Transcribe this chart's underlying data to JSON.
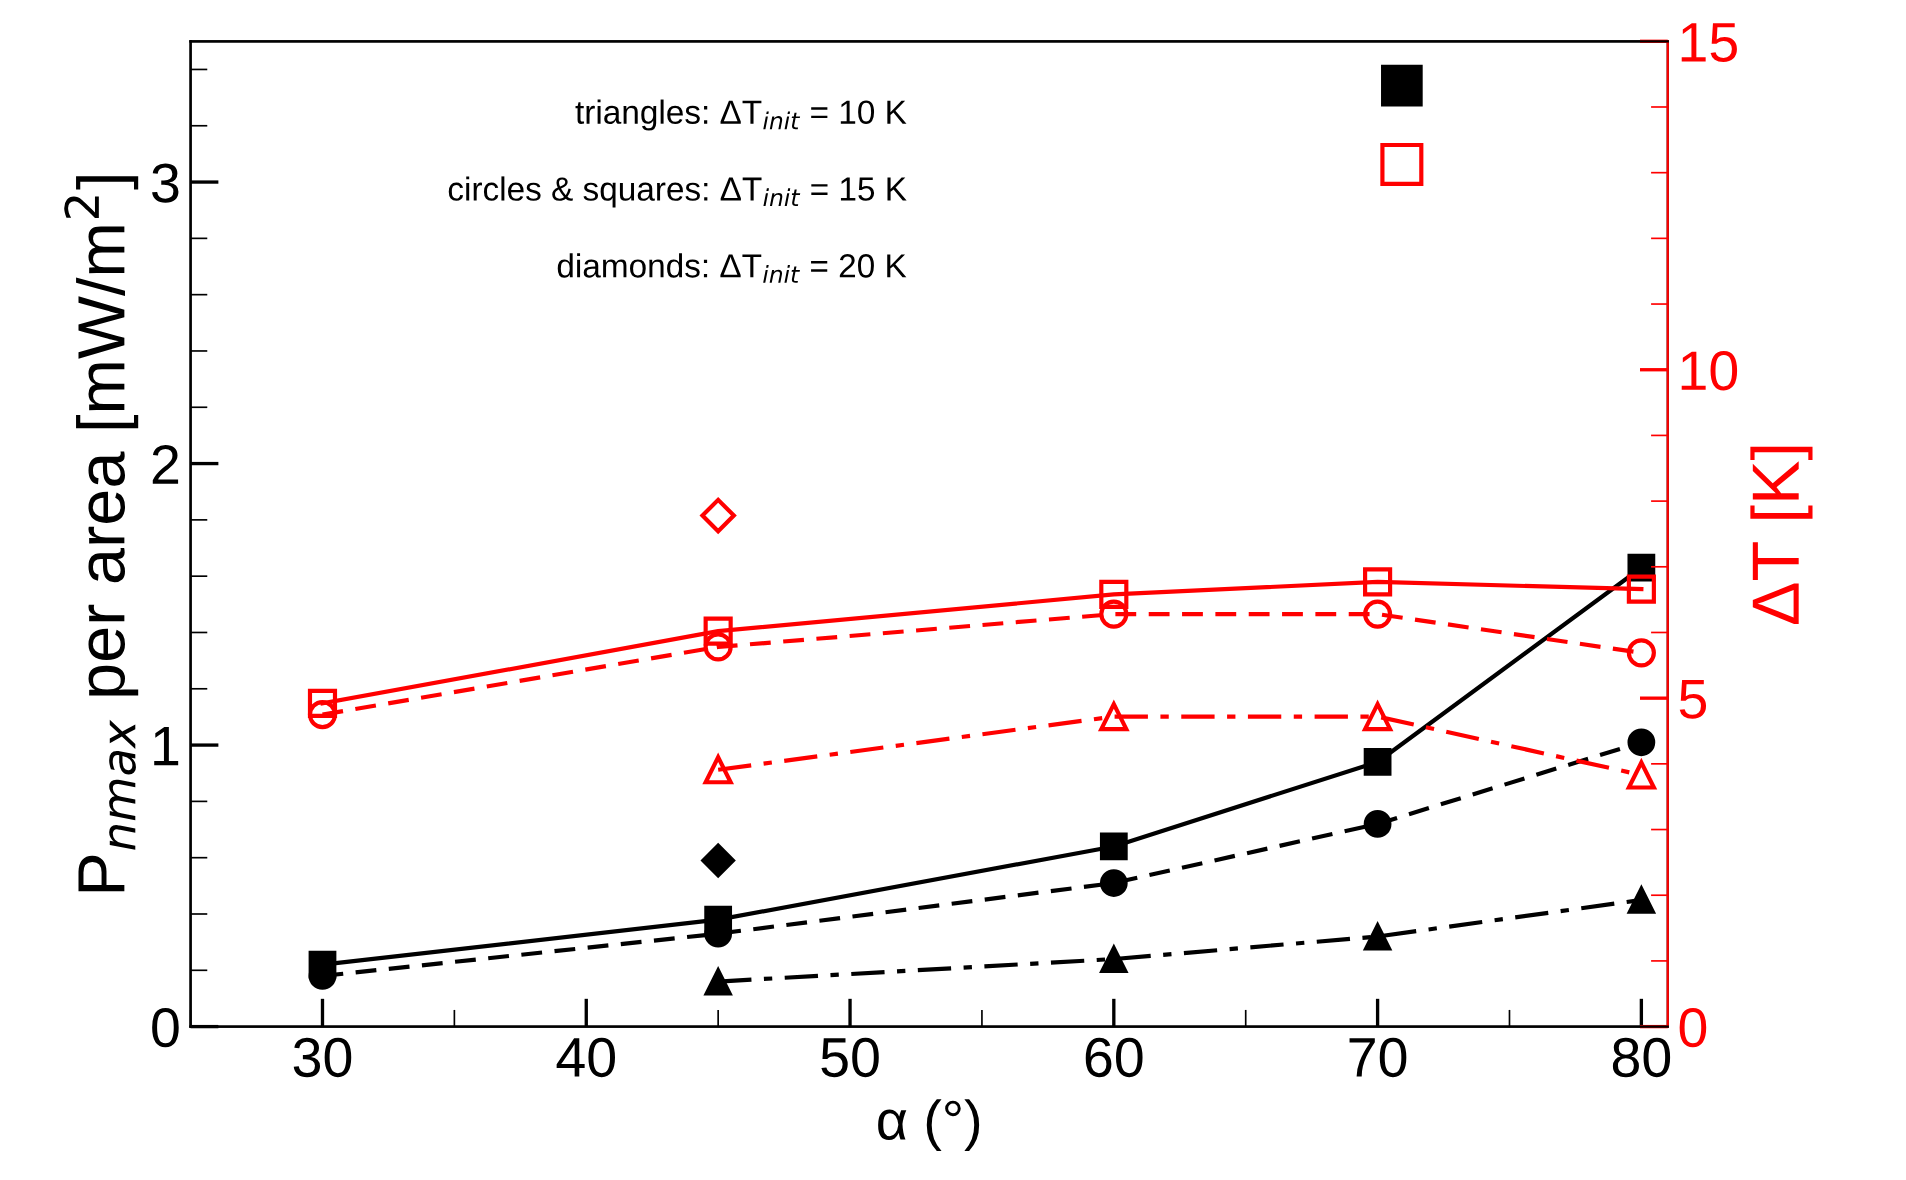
{
  "chart_data": {
    "type": "line",
    "xlabel": "α (°)",
    "ylabel": "P$_{nmax}$ per area [mW/m$^{2}$]",
    "y2label": "ΔT [K]",
    "xlim": [
      25,
      81
    ],
    "xticks": [
      30,
      40,
      50,
      60,
      70,
      80
    ],
    "ylim": [
      0,
      3.5
    ],
    "yticks": [
      0,
      1,
      2,
      3
    ],
    "y2lim": [
      0,
      15
    ],
    "y2ticks": [
      0,
      5,
      10,
      15
    ],
    "grid": false,
    "legend": false,
    "annotations": [
      "triangles: ΔT$_{init}$ = 10 K",
      "circles & squares: ΔT$_{init}$ = 15 K",
      "diamonds: ΔT$_{init}$ = 20 K"
    ],
    "series": [
      {
        "color": "#000000",
        "marker": "square",
        "line_style": "solid",
        "x": [
          30,
          45,
          60,
          70,
          80
        ],
        "values": [
          0.22,
          0.38,
          0.64,
          0.94,
          1.63
        ]
      },
      {
        "color": "#000000",
        "marker": "circle",
        "line_style": "dashed",
        "x": [
          30,
          45,
          60,
          70,
          80
        ],
        "values": [
          0.18,
          0.33,
          0.51,
          0.72,
          1.01
        ]
      },
      {
        "color": "#000000",
        "marker": "triangle",
        "line_style": "dashdot",
        "x": [
          45,
          60,
          70,
          80
        ],
        "values": [
          0.16,
          0.24,
          0.32,
          0.45
        ]
      },
      {
        "type": "scatter",
        "color": "#000000",
        "marker": "diamond",
        "x": [
          45
        ],
        "values": [
          0.59
        ]
      },
      {
        "axis": "y2",
        "color": "#ff0000",
        "marker": "square",
        "line_style": "solid",
        "x": [
          30,
          45,
          60,
          70,
          80
        ],
        "values": [
          4.92,
          6.02,
          6.58,
          6.77,
          6.66
        ]
      },
      {
        "axis": "y2",
        "color": "#ff0000",
        "marker": "circle",
        "line_style": "dashed",
        "x": [
          30,
          45,
          60,
          70,
          80
        ],
        "values": [
          4.75,
          5.78,
          6.28,
          6.28,
          5.69
        ]
      },
      {
        "axis": "y2",
        "color": "#ff0000",
        "marker": "triangle",
        "line_style": "dashdot",
        "x": [
          45,
          60,
          70,
          80
        ],
        "values": [
          3.91,
          4.72,
          4.72,
          3.83
        ]
      },
      {
        "axis": "y2",
        "type": "scatter",
        "color": "#ff0000",
        "marker": "diamond",
        "x": [
          45
        ],
        "values": [
          7.78
        ]
      }
    ]
  }
}
